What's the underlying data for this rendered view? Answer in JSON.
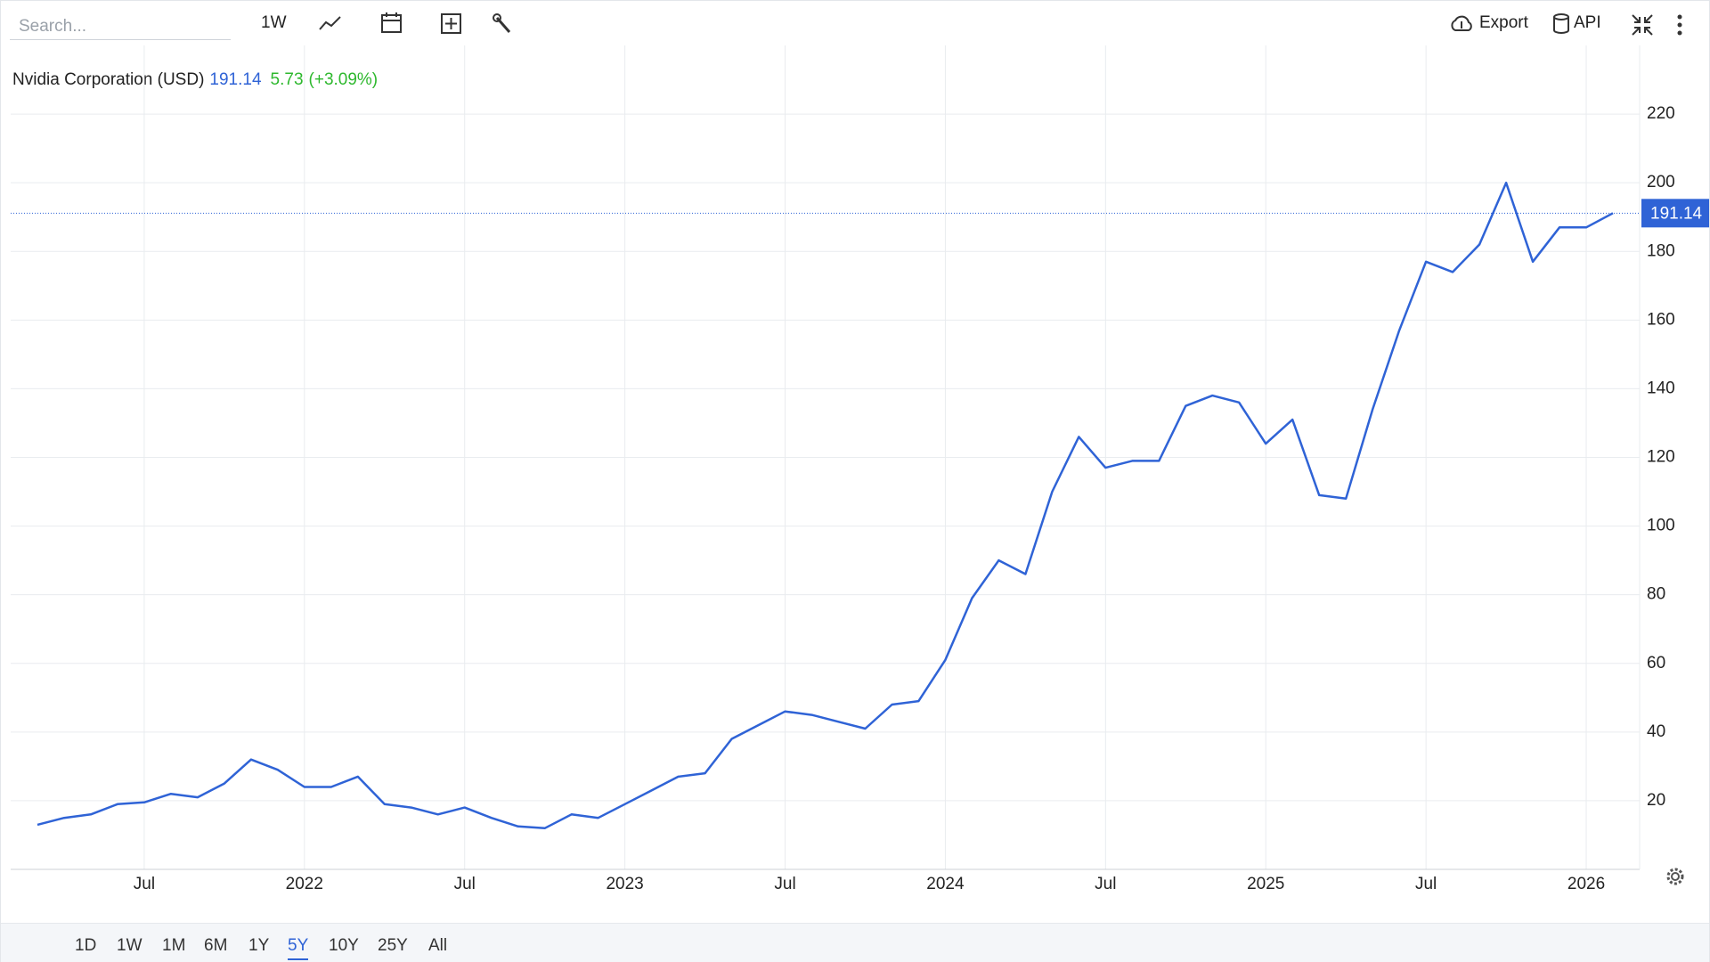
{
  "ui": {
    "search_placeholder": "Search...",
    "interval": "1W",
    "export": "Export",
    "api": "API",
    "ranges": [
      "1D",
      "1W",
      "1M",
      "6M",
      "1Y",
      "5Y",
      "10Y",
      "25Y",
      "All"
    ],
    "active_range": 5
  },
  "chart_data": {
    "type": "line",
    "title": "Nvidia Corporation (USD)",
    "price": 191.14,
    "change": 5.73,
    "change_pct": "(+3.09%)",
    "x": [
      "2021-03",
      "2021-04",
      "2021-05",
      "2021-06",
      "2021-07",
      "2021-08",
      "2021-09",
      "2021-10",
      "2021-11",
      "2021-12",
      "2022-01",
      "2022-02",
      "2022-03",
      "2022-04",
      "2022-05",
      "2022-06",
      "2022-07",
      "2022-08",
      "2022-09",
      "2022-10",
      "2022-11",
      "2022-12",
      "2023-01",
      "2023-02",
      "2023-03",
      "2023-04",
      "2023-05",
      "2023-06",
      "2023-07",
      "2023-08",
      "2023-09",
      "2023-10",
      "2023-11",
      "2023-12",
      "2024-01",
      "2024-02",
      "2024-03",
      "2024-04",
      "2024-05",
      "2024-06",
      "2024-07",
      "2024-08",
      "2024-09",
      "2024-10",
      "2024-11",
      "2024-12",
      "2025-01",
      "2025-02",
      "2025-03",
      "2025-04",
      "2025-05",
      "2025-06",
      "2025-07",
      "2025-08",
      "2025-09",
      "2025-10",
      "2025-11",
      "2025-12",
      "2026-01",
      "2026-02"
    ],
    "series": [
      {
        "name": "Nvidia Corporation (USD)",
        "color": "#2f63d6",
        "values": [
          13,
          15,
          16,
          19,
          19.5,
          22,
          21,
          25,
          32,
          29,
          24,
          24,
          27,
          19,
          18,
          16,
          18,
          15,
          12.5,
          12,
          16,
          15,
          19,
          23,
          27,
          28,
          38,
          42,
          46,
          45,
          43,
          41,
          48,
          49,
          61,
          79,
          90,
          86,
          110,
          126,
          117,
          119,
          119,
          135,
          138,
          136,
          124,
          131,
          109,
          108,
          134,
          157,
          177,
          174,
          182,
          200,
          177,
          187,
          187,
          191.14
        ]
      }
    ],
    "xlim": [
      "2021-02",
      "2026-03"
    ],
    "xticks": [
      {
        "value": "2021-07",
        "label": "Jul"
      },
      {
        "value": "2022-01",
        "label": "2022"
      },
      {
        "value": "2022-07",
        "label": "Jul"
      },
      {
        "value": "2023-01",
        "label": "2023"
      },
      {
        "value": "2023-07",
        "label": "Jul"
      },
      {
        "value": "2024-01",
        "label": "2024"
      },
      {
        "value": "2024-07",
        "label": "Jul"
      },
      {
        "value": "2025-01",
        "label": "2025"
      },
      {
        "value": "2025-07",
        "label": "Jul"
      },
      {
        "value": "2026-01",
        "label": "2026"
      }
    ],
    "ylim": [
      0,
      240
    ],
    "yticks": [
      20,
      40,
      60,
      80,
      100,
      120,
      140,
      160,
      180,
      200,
      220
    ],
    "grid": true
  }
}
